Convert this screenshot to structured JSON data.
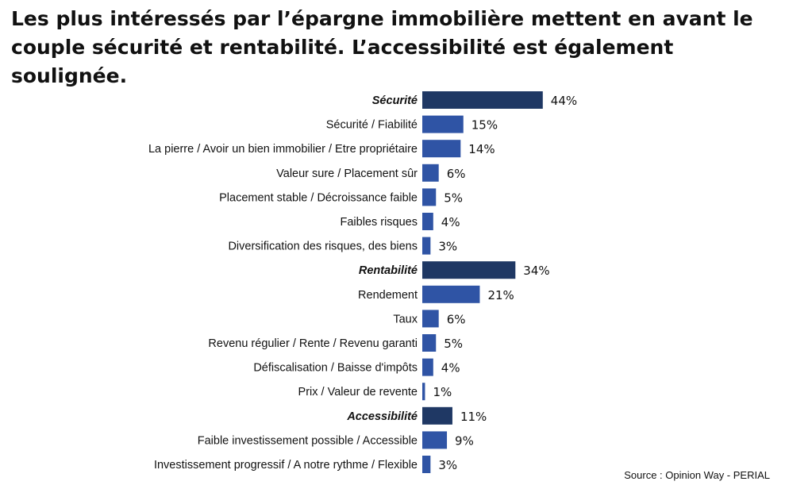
{
  "title": "Les plus intéressés par l’épargne immobilière mettent en avant le couple sécurité et rentabilité. L’accessibilité est également soulignée.",
  "source": "Source : Opinion Way - PERIAL",
  "colors": {
    "category_bar": "#1f3864",
    "item_bar": "#2f54a5",
    "text": "#111111"
  },
  "chart_data": {
    "type": "bar",
    "orientation": "horizontal",
    "categories": [
      "Sécurité",
      "Sécurité / Fiabilité",
      "La pierre / Avoir un bien immobilier / Etre propriétaire",
      "Valeur sure / Placement sûr",
      "Placement stable / Décroissance faible",
      "Faibles risques",
      "Diversification des risques, des biens",
      "Rentabilité",
      "Rendement",
      "Taux",
      "Revenu régulier / Rente / Revenu garanti",
      "Défiscalisation / Baisse d'impôts",
      "Prix / Valeur de revente",
      "Accessibilité",
      "Faible investissement possible / Accessible",
      "Investissement progressif / A notre rythme / Flexible"
    ],
    "values": [
      44,
      15,
      14,
      6,
      5,
      4,
      3,
      34,
      21,
      6,
      5,
      4,
      1,
      11,
      9,
      3
    ],
    "value_labels": [
      "44%",
      "15%",
      "14%",
      "6%",
      "5%",
      "4%",
      "3%",
      "34%",
      "21%",
      "6%",
      "5%",
      "4%",
      "1%",
      "11%",
      "9%",
      "3%"
    ],
    "group_headers": [
      true,
      false,
      false,
      false,
      false,
      false,
      false,
      true,
      false,
      false,
      false,
      false,
      false,
      true,
      false,
      false
    ],
    "unit": "%",
    "title": "",
    "xlabel": "",
    "ylabel": ""
  }
}
